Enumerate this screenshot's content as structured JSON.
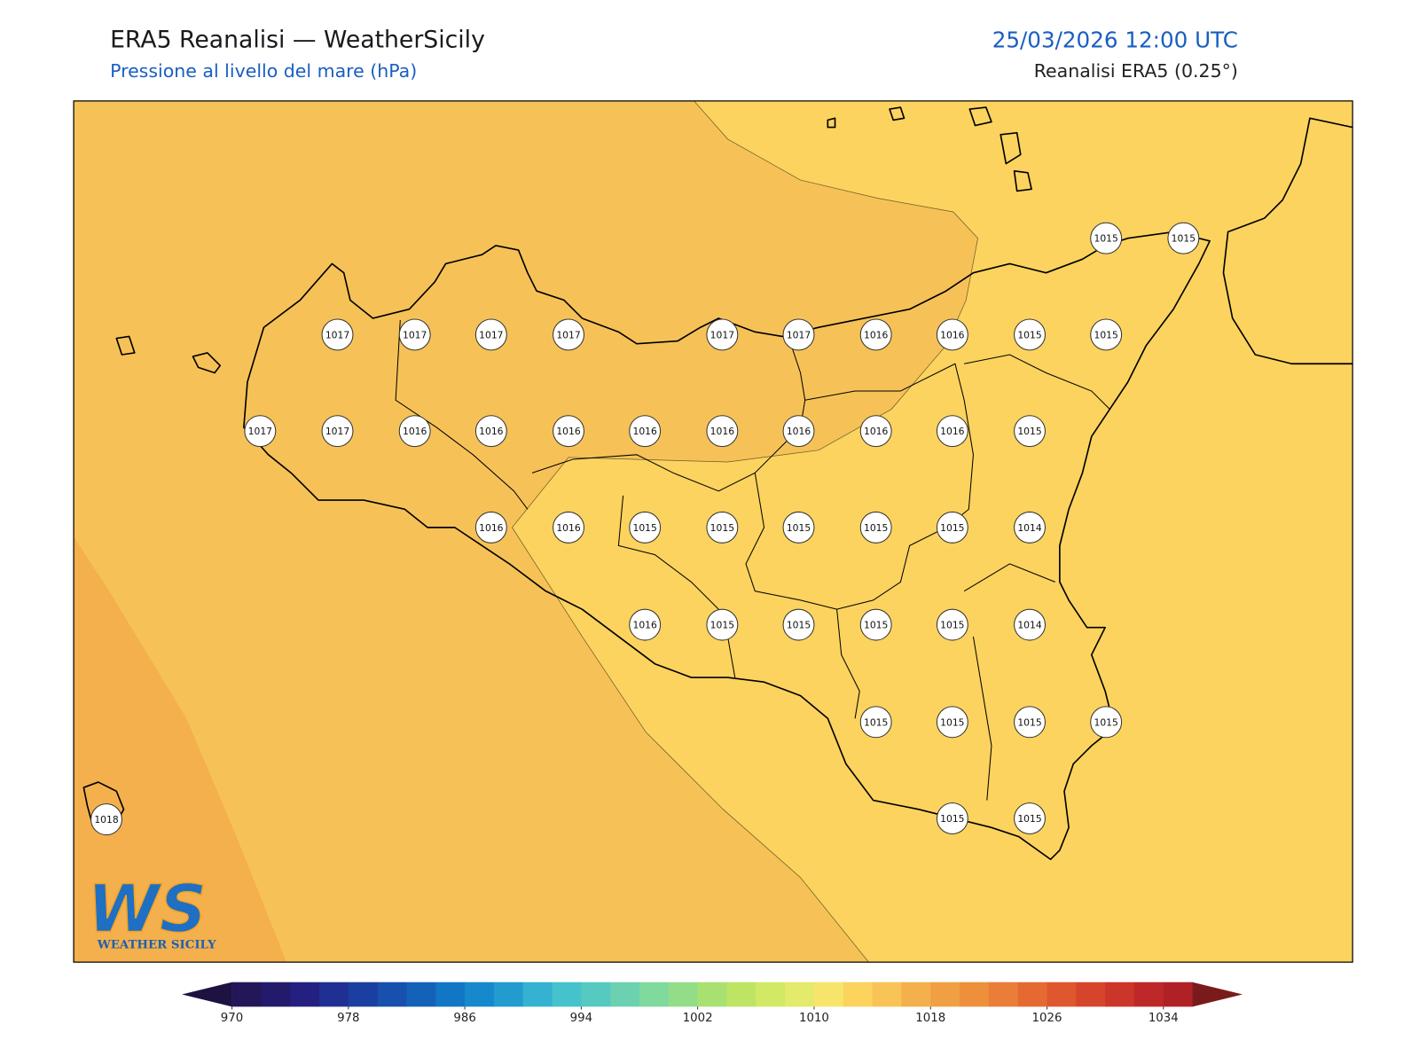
{
  "header": {
    "title": "ERA5 Reanalisi — WeatherSicily",
    "subtitle": "Pressione al livello del mare (hPa)",
    "datetime": "25/03/2026 12:00 UTC",
    "source": "Reanalisi ERA5 (0.25°)"
  },
  "stations": {
    "values": [
      1015,
      1015,
      1017,
      1017,
      1017,
      1017,
      1017,
      1017,
      1016,
      1016,
      1015,
      1015,
      1017,
      1017,
      1016,
      1016,
      1016,
      1016,
      1016,
      1016,
      1016,
      1016,
      1015,
      1016,
      1016,
      1015,
      1015,
      1015,
      1015,
      1015,
      1014,
      1016,
      1015,
      1015,
      1015,
      1015,
      1014,
      1015,
      1015,
      1015,
      1015,
      1015,
      1015,
      1018
    ]
  },
  "colorbar": {
    "lim": [
      970,
      1036
    ],
    "ticks": [
      970,
      978,
      986,
      994,
      1002,
      1010,
      1018,
      1026,
      1034
    ],
    "colors": [
      "#231758",
      "#241a6b",
      "#232080",
      "#1f2f92",
      "#1b3fa0",
      "#1750ad",
      "#1462b8",
      "#1176c4",
      "#1689cc",
      "#229ccf",
      "#35b2d2",
      "#45c2cc",
      "#56c9c0",
      "#6bd1b1",
      "#80d99d",
      "#94dd88",
      "#a8e172",
      "#bde563",
      "#d2e966",
      "#e4ea6c",
      "#f7e46a",
      "#fbd35d",
      "#f8c357",
      "#f3b04c",
      "#f0a043",
      "#ee8f3c",
      "#ea7d37",
      "#e56a32",
      "#de572e",
      "#d6452b",
      "#cc3529",
      "#bf2828",
      "#b02126"
    ],
    "under_color": "#1e1243",
    "over_color": "#7a1b1b"
  },
  "logo": {
    "mark": "WS",
    "name": "WEATHER SICILY"
  }
}
